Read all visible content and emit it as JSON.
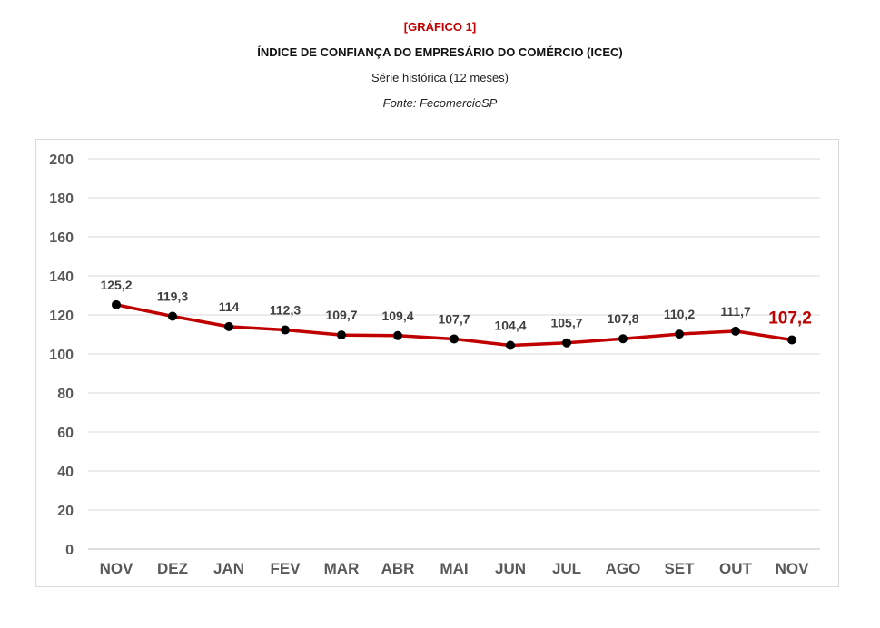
{
  "header": {
    "tag": "[GRÁFICO 1]",
    "title": "ÍNDICE DE CONFIANÇA DO EMPRESÁRIO DO COMÉRCIO (ICEC)",
    "subtitle": "Série histórica (12 meses)",
    "source": "Fonte: FecomercioSP"
  },
  "chart_data": {
    "type": "line",
    "title": "ÍNDICE DE CONFIANÇA DO EMPRESÁRIO DO COMÉRCIO (ICEC)",
    "subtitle": "Série histórica (12 meses)",
    "categories": [
      "NOV",
      "DEZ",
      "JAN",
      "FEV",
      "MAR",
      "ABR",
      "MAI",
      "JUN",
      "JUL",
      "AGO",
      "SET",
      "OUT",
      "NOV"
    ],
    "values": [
      125.2,
      119.3,
      114,
      112.3,
      109.7,
      109.4,
      107.7,
      104.4,
      105.7,
      107.8,
      110.2,
      111.7,
      107.2
    ],
    "data_labels": [
      "125,2",
      "119,3",
      "114",
      "112,3",
      "109,7",
      "109,4",
      "107,7",
      "104,4",
      "105,7",
      "107,8",
      "110,2",
      "111,7",
      "107,2"
    ],
    "highlight_last": true,
    "ylim": [
      0,
      200
    ],
    "yticks": [
      "0",
      "20",
      "40",
      "60",
      "80",
      "100",
      "120",
      "140",
      "160",
      "180",
      "200"
    ],
    "xlabel": "",
    "ylabel": "",
    "grid": "horizontal",
    "legend": "none",
    "colors": {
      "line": "#c00000",
      "marker": "#000000",
      "highlight_label": "#c00000",
      "grid": "#d9d9d9",
      "axis": "#bfbfbf"
    }
  }
}
